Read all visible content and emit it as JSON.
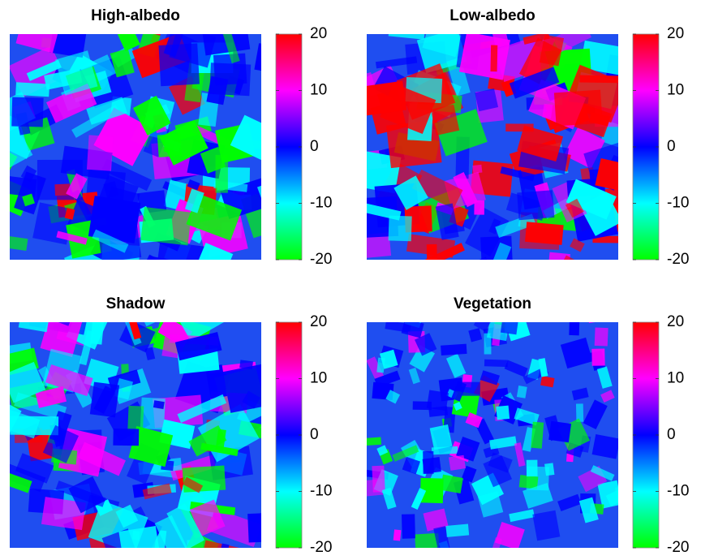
{
  "chart_data": [
    {
      "type": "heatmap",
      "title": "High-albedo",
      "clim": [
        -20,
        20
      ],
      "cticks": [
        -20,
        -10,
        0,
        10,
        20
      ],
      "colormap": [
        "#00ff00",
        "#00ffff",
        "#0000ff",
        "#ff00ff",
        "#ff0000"
      ]
    },
    {
      "type": "heatmap",
      "title": "Low-albedo",
      "clim": [
        -20,
        20
      ],
      "cticks": [
        -20,
        -10,
        0,
        10,
        20
      ],
      "colormap": [
        "#00ff00",
        "#00ffff",
        "#0000ff",
        "#ff00ff",
        "#ff0000"
      ]
    },
    {
      "type": "heatmap",
      "title": "Shadow",
      "clim": [
        -20,
        20
      ],
      "cticks": [
        -20,
        -10,
        0,
        10,
        20
      ],
      "colormap": [
        "#00ff00",
        "#00ffff",
        "#0000ff",
        "#ff00ff",
        "#ff0000"
      ]
    },
    {
      "type": "heatmap",
      "title": "Vegetation",
      "clim": [
        -20,
        20
      ],
      "cticks": [
        -20,
        -10,
        0,
        10,
        20
      ],
      "colormap": [
        "#00ff00",
        "#00ffff",
        "#0000ff",
        "#ff00ff",
        "#ff0000"
      ]
    }
  ]
}
